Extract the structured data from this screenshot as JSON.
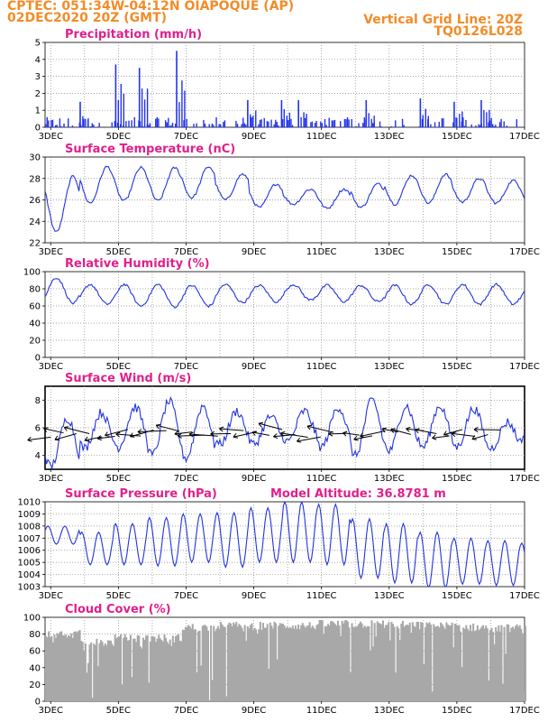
{
  "header": {
    "line1": "CPTEC:    051:34W-04:12N   OIAPOQUE (AP)",
    "line2": "02DEC2020 20Z (GMT)",
    "right1": "Vertical Grid Line: 20Z",
    "right2": "TQ0126L028"
  },
  "colors": {
    "header": "#f28c28",
    "title": "#e0208c",
    "line": "#2233dd",
    "bar": "#2233ee",
    "cloud": "#a8a8a8",
    "wind_arrow": "#000000"
  },
  "x_axis": {
    "type": "date",
    "range_hours": [
      "2020-12-02T20:00Z",
      "2020-12-17T00:00Z"
    ],
    "tick_labels": [
      "3DEC",
      "5DEC",
      "7DEC",
      "9DEC",
      "11DEC",
      "13DEC",
      "15DEC",
      "17DEC"
    ],
    "tick_dates": [
      "2020-12-03",
      "2020-12-05",
      "2020-12-07",
      "2020-12-09",
      "2020-12-11",
      "2020-12-13",
      "2020-12-15",
      "2020-12-17"
    ]
  },
  "chart_data": [
    {
      "type": "bar",
      "title": "Precipitation (mm/h)",
      "ylim": [
        0,
        5
      ],
      "yticks": [
        "0",
        "1",
        "2",
        "3",
        "4",
        "5"
      ],
      "series": [
        {
          "values_peaks": [
            {
              "day": 3.85,
              "v": 1.5
            },
            {
              "day": 4.9,
              "v": 3.7
            },
            {
              "day": 5.6,
              "v": 3.5
            },
            {
              "day": 6.7,
              "v": 4.5
            },
            {
              "day": 8.8,
              "v": 1.6
            },
            {
              "day": 9.8,
              "v": 1.6
            },
            {
              "day": 10.3,
              "v": 1.6
            },
            {
              "day": 12.3,
              "v": 1.6
            },
            {
              "day": 13.9,
              "v": 1.7
            },
            {
              "day": 14.9,
              "v": 1.5
            },
            {
              "day": 15.7,
              "v": 1.6
            }
          ]
        }
      ]
    },
    {
      "type": "line",
      "title": "Surface Temperature (nC)",
      "ylim": [
        22,
        30
      ],
      "yticks": [
        "22",
        "24",
        "26",
        "28",
        "30"
      ],
      "daily_max": [
        28.2,
        29.1,
        29.0,
        29.0,
        29.1,
        28.4,
        27.5,
        27.0,
        27.0,
        27.5,
        28.3,
        28.4,
        28.0,
        27.8,
        28.0
      ],
      "daily_min": [
        23.0,
        25.7,
        25.9,
        25.9,
        26.2,
        26.0,
        25.3,
        25.6,
        25.2,
        25.3,
        25.6,
        25.7,
        25.8,
        25.7,
        25.6
      ]
    },
    {
      "type": "line",
      "title": "Relative Humidity (%)",
      "ylim": [
        0,
        100
      ],
      "yticks": [
        "0",
        "20",
        "40",
        "60",
        "80",
        "100"
      ],
      "daily_max": [
        93,
        85,
        85,
        85,
        84,
        85,
        84,
        85,
        84,
        84,
        84,
        85,
        85,
        85,
        85
      ],
      "daily_min": [
        63,
        62,
        60,
        59,
        60,
        64,
        65,
        67,
        65,
        65,
        62,
        62,
        62,
        62,
        58
      ]
    },
    {
      "type": "line",
      "title": "Surface Wind (m/s)",
      "ylim": [
        3,
        9
      ],
      "yticks": [
        "4",
        "6",
        "8"
      ],
      "daily_max": [
        6.7,
        7.1,
        7.5,
        7.9,
        7.6,
        7.2,
        6.8,
        7.2,
        7.5,
        8.0,
        7.6,
        7.6,
        7.4,
        6.4,
        6.0
      ],
      "daily_min": [
        3.2,
        4.5,
        4.6,
        4.0,
        3.8,
        4.8,
        4.8,
        5.0,
        4.6,
        4.0,
        4.3,
        4.6,
        4.6,
        4.5,
        5.2
      ],
      "direction_note": "wind vectors from east"
    },
    {
      "type": "line",
      "title": "Surface Pressure (hPa)",
      "annotation": "Model Altitude: 36.8781 m",
      "ylim": [
        1003,
        1010
      ],
      "yticks": [
        "1003",
        "1004",
        "1005",
        "1006",
        "1007",
        "1008",
        "1009",
        "1010"
      ],
      "daily_max": [
        1008.0,
        1007.5,
        1008.2,
        1008.7,
        1009.0,
        1009.1,
        1009.5,
        1010.0,
        1009.8,
        1008.6,
        1008.2,
        1007.5,
        1007.0,
        1006.8,
        1006.6
      ],
      "daily_min": [
        1006.5,
        1004.8,
        1004.8,
        1004.7,
        1005.0,
        1004.6,
        1005.0,
        1005.0,
        1004.8,
        1003.7,
        1003.3,
        1002.9,
        1003.2,
        1003.1,
        1003.4
      ]
    },
    {
      "type": "area",
      "title": "Cloud Cover (%)",
      "ylim": [
        0,
        100
      ],
      "yticks": [
        "0",
        "20",
        "40",
        "60",
        "80",
        "100"
      ],
      "typical_top": [
        80,
        70,
        75,
        75,
        88,
        90,
        90,
        90,
        92,
        92,
        91,
        90,
        88,
        87,
        86
      ]
    }
  ]
}
